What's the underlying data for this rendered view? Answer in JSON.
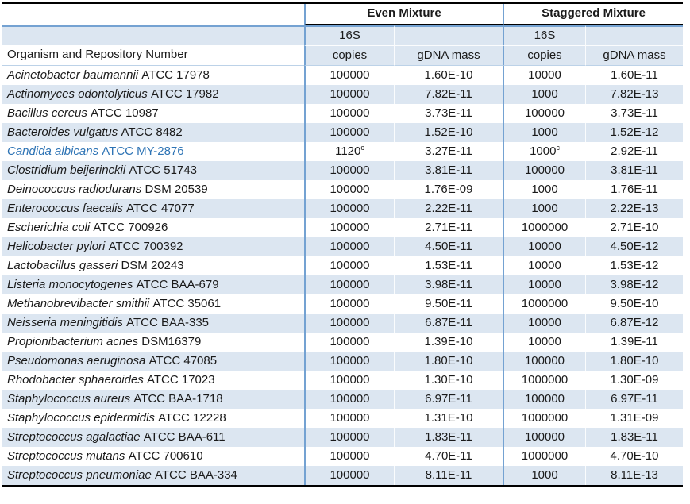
{
  "colors": {
    "stripe_fill": "#DCE6F1",
    "section_line_blue": "#74A2D2",
    "thin_rule": "#BCD2E8",
    "border_dark": "#000000",
    "candida_text_blue": "#2E74B5"
  },
  "table": {
    "group_headers": {
      "even": "Even Mixture",
      "staggered": "Staggered Mixture"
    },
    "subheader": {
      "organism": "Organism and Repository Number",
      "copies_line1": "16S",
      "copies_line2": "copies",
      "gdna": "gDNA mass"
    },
    "footnote_marker": "c",
    "rows": [
      {
        "name": "Acinetobacter baumannii",
        "strain": "ATCC 17978",
        "even_copies": "100000",
        "even_mass": "1.60E-10",
        "stag_copies": "10000",
        "stag_mass": "1.60E-11"
      },
      {
        "name": "Actinomyces odontolyticus",
        "strain": "ATCC 17982",
        "even_copies": "100000",
        "even_mass": "7.82E-11",
        "stag_copies": "1000",
        "stag_mass": "7.82E-13"
      },
      {
        "name": "Bacillus cereus",
        "strain": "ATCC 10987",
        "even_copies": "100000",
        "even_mass": "3.73E-11",
        "stag_copies": "100000",
        "stag_mass": "3.73E-11"
      },
      {
        "name": "Bacteroides vulgatus",
        "strain": "ATCC 8482",
        "even_copies": "100000",
        "even_mass": "1.52E-10",
        "stag_copies": "1000",
        "stag_mass": "1.52E-12"
      },
      {
        "name": "Candida albicans",
        "strain": "ATCC MY-2876",
        "even_copies": "1120",
        "even_copies_note": "c",
        "even_mass": "3.27E-11",
        "stag_copies": "1000",
        "stag_copies_note": "c",
        "stag_mass": "2.92E-11",
        "highlighted": true
      },
      {
        "name": "Clostridium beijerinckii",
        "strain": "ATCC 51743",
        "even_copies": "100000",
        "even_mass": "3.81E-11",
        "stag_copies": "100000",
        "stag_mass": "3.81E-11"
      },
      {
        "name": "Deinococcus radiodurans",
        "strain": "DSM 20539",
        "even_copies": "100000",
        "even_mass": "1.76E-09",
        "stag_copies": "1000",
        "stag_mass": "1.76E-11"
      },
      {
        "name": "Enterococcus faecalis",
        "strain": "ATCC 47077",
        "even_copies": "100000",
        "even_mass": "2.22E-11",
        "stag_copies": "1000",
        "stag_mass": "2.22E-13"
      },
      {
        "name": "Escherichia coli",
        "strain": "ATCC 700926",
        "even_copies": "100000",
        "even_mass": "2.71E-11",
        "stag_copies": "1000000",
        "stag_mass": "2.71E-10"
      },
      {
        "name": "Helicobacter pylori",
        "strain": "ATCC 700392",
        "even_copies": "100000",
        "even_mass": "4.50E-11",
        "stag_copies": "10000",
        "stag_mass": "4.50E-12"
      },
      {
        "name": "Lactobacillus gasseri",
        "strain": "DSM 20243",
        "even_copies": "100000",
        "even_mass": "1.53E-11",
        "stag_copies": "10000",
        "stag_mass": "1.53E-12"
      },
      {
        "name": "Listeria monocytogenes",
        "strain": "ATCC BAA-679",
        "even_copies": "100000",
        "even_mass": "3.98E-11",
        "stag_copies": "10000",
        "stag_mass": "3.98E-12"
      },
      {
        "name": "Methanobrevibacter smithii",
        "strain": "ATCC 35061",
        "even_copies": "100000",
        "even_mass": "9.50E-11",
        "stag_copies": "1000000",
        "stag_mass": "9.50E-10"
      },
      {
        "name": "Neisseria meningitidis",
        "strain": "ATCC BAA-335",
        "even_copies": "100000",
        "even_mass": "6.87E-11",
        "stag_copies": "10000",
        "stag_mass": "6.87E-12"
      },
      {
        "name": "Propionibacterium acnes",
        "strain": "DSM16379",
        "even_copies": "100000",
        "even_mass": "1.39E-10",
        "stag_copies": "10000",
        "stag_mass": "1.39E-11"
      },
      {
        "name": "Pseudomonas aeruginosa",
        "strain": "ATCC 47085",
        "even_copies": "100000",
        "even_mass": "1.80E-10",
        "stag_copies": "100000",
        "stag_mass": "1.80E-10"
      },
      {
        "name": "Rhodobacter sphaeroides",
        "strain": "ATCC 17023",
        "even_copies": "100000",
        "even_mass": "1.30E-10",
        "stag_copies": "1000000",
        "stag_mass": "1.30E-09"
      },
      {
        "name": "Staphylococcus aureus",
        "strain": "ATCC BAA-1718",
        "even_copies": "100000",
        "even_mass": "6.97E-11",
        "stag_copies": "100000",
        "stag_mass": "6.97E-11"
      },
      {
        "name": "Staphylococcus epidermidis",
        "strain": "ATCC 12228",
        "even_copies": "100000",
        "even_mass": "1.31E-10",
        "stag_copies": "1000000",
        "stag_mass": "1.31E-09"
      },
      {
        "name": "Streptococcus agalactiae",
        "strain": "ATCC BAA-611",
        "even_copies": "100000",
        "even_mass": "1.83E-11",
        "stag_copies": "100000",
        "stag_mass": "1.83E-11"
      },
      {
        "name": "Streptococcus mutans",
        "strain": "ATCC 700610",
        "even_copies": "100000",
        "even_mass": "4.70E-11",
        "stag_copies": "1000000",
        "stag_mass": "4.70E-10"
      },
      {
        "name": "Streptococcus pneumoniae",
        "strain": "ATCC BAA-334",
        "even_copies": "100000",
        "even_mass": "8.11E-11",
        "stag_copies": "1000",
        "stag_mass": "8.11E-13"
      }
    ]
  }
}
